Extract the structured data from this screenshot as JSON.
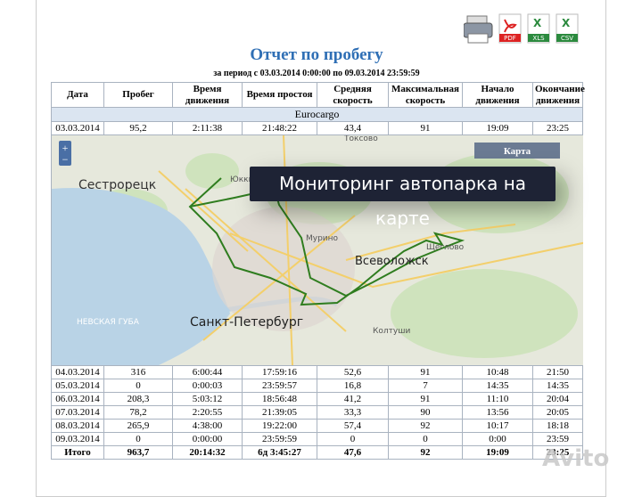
{
  "export": [
    "PDF",
    "XLS",
    "CSV"
  ],
  "report": {
    "title": "Отчет по пробегу",
    "period": "за период с 03.03.2014 0:00:00 по 09.03.2014 23:59:59"
  },
  "table": {
    "header": [
      "Дата",
      "Пробег",
      "Время движения",
      "Время простоя",
      "Средняя скорость",
      "Максимальная скорость",
      "Начало движения",
      "Окончание движения"
    ],
    "group": "Eurocargo",
    "rows": [
      [
        "03.03.2014",
        "95,2",
        "2:11:38",
        "21:48:22",
        "43,4",
        "91",
        "19:09",
        "23:25"
      ],
      [
        "04.03.2014",
        "316",
        "6:00:44",
        "17:59:16",
        "52,6",
        "91",
        "10:48",
        "21:50"
      ],
      [
        "05.03.2014",
        "0",
        "0:00:03",
        "23:59:57",
        "16,8",
        "7",
        "14:35",
        "14:35"
      ],
      [
        "06.03.2014",
        "208,3",
        "5:03:12",
        "18:56:48",
        "41,2",
        "91",
        "11:10",
        "20:04"
      ],
      [
        "07.03.2014",
        "78,2",
        "2:20:55",
        "21:39:05",
        "33,3",
        "90",
        "13:56",
        "20:05"
      ],
      [
        "08.03.2014",
        "265,9",
        "4:38:00",
        "19:22:00",
        "57,4",
        "92",
        "10:17",
        "18:18"
      ],
      [
        "09.03.2014",
        "0",
        "0:00:00",
        "23:59:59",
        "0",
        "0",
        "0:00",
        "23:59"
      ]
    ],
    "total": [
      "Итого",
      "963,7",
      "20:14:32",
      "6д 3:45:27",
      "47,6",
      "92",
      "19:09",
      "23:25"
    ]
  },
  "map": {
    "button": "Карта",
    "zoom_in": "+",
    "zoom_out": "−",
    "places": [
      "Сестрорецк",
      "Санкт-Петербург",
      "Всеволожск",
      "НЕВСКАЯ ГУБА",
      "Токсово",
      "Мурино",
      "Колтуши",
      "Юкки",
      "Щеглово"
    ]
  },
  "overlay": "Мониторинг автопарка на карте",
  "watermark": "Avito"
}
